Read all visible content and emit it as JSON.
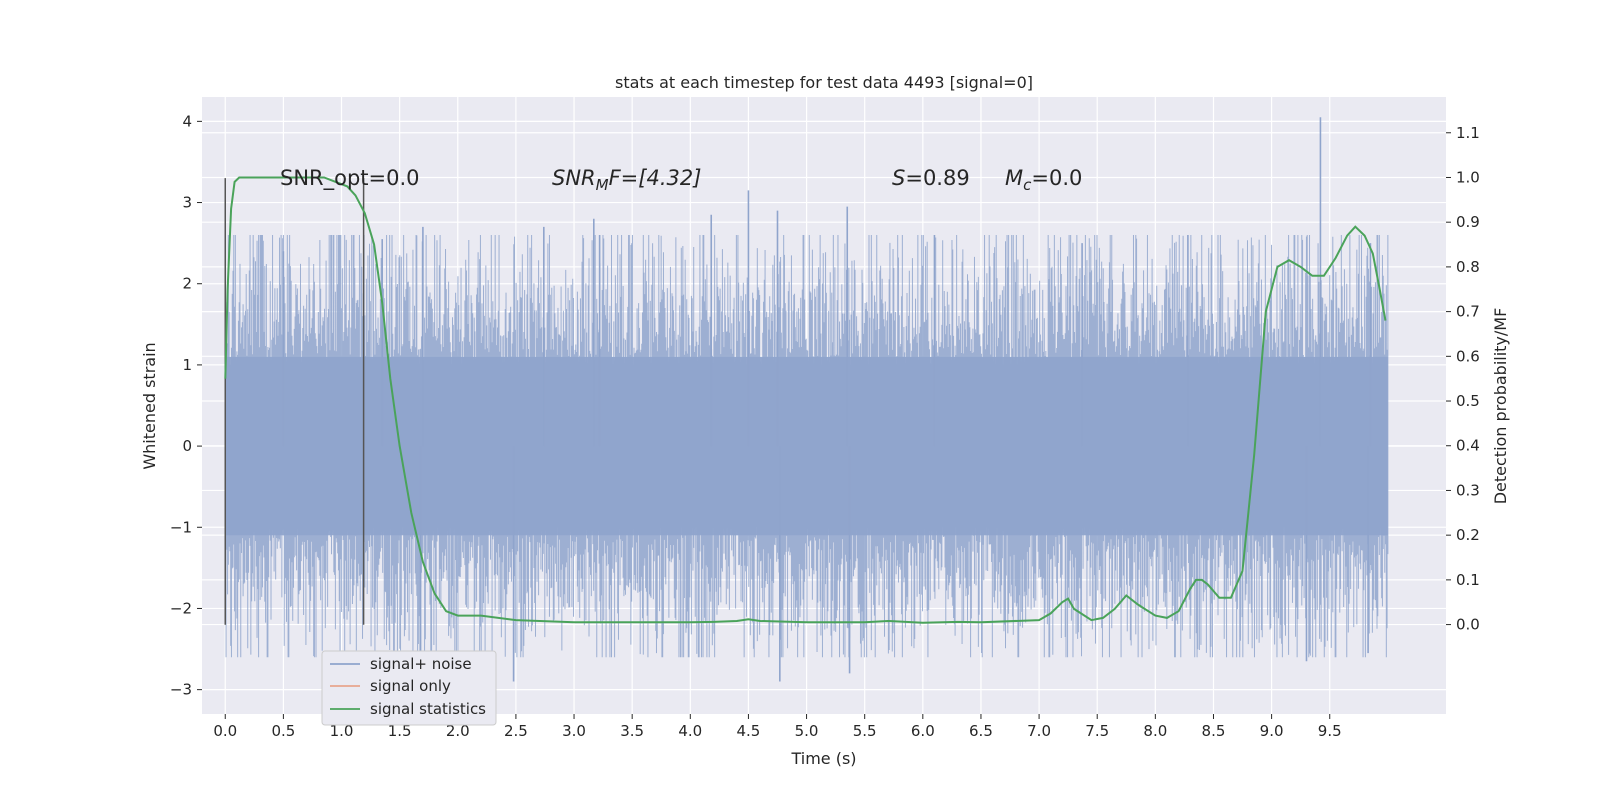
{
  "chart_data": {
    "type": "line",
    "title": "stats at each timestep for test data 4493 [signal=0]",
    "xlabel": "Time (s)",
    "ylabel_left": "Whitened strain",
    "ylabel_right": "Detection probability/MF",
    "xlim": [
      -0.2,
      10.5
    ],
    "ylim_left": [
      -3.3,
      4.3
    ],
    "ylim_right": [
      -0.2,
      1.18
    ],
    "x_ticks": [
      "0.0",
      "0.5",
      "1.0",
      "1.5",
      "2.0",
      "2.5",
      "3.0",
      "3.5",
      "4.0",
      "4.5",
      "5.0",
      "5.5",
      "6.0",
      "6.5",
      "7.0",
      "7.5",
      "8.0",
      "8.5",
      "9.0",
      "9.5"
    ],
    "y_left_ticks": [
      "4",
      "3",
      "2",
      "1",
      "0",
      "−1",
      "−2",
      "−3"
    ],
    "y_right_ticks": [
      "1.1",
      "1.0",
      "0.9",
      "0.8",
      "0.7",
      "0.6",
      "0.5",
      "0.4",
      "0.3",
      "0.2",
      "0.1",
      "0.0"
    ],
    "grid": true,
    "annotations": {
      "snr_opt": "SNR_opt=0.0",
      "snr_mf_prefix": "SNR",
      "snr_mf_sub": "M",
      "snr_mf_suffix": "F=[4.32]",
      "s_symbol": "S",
      "s_value": "=0.89",
      "mc_symbol": "M",
      "mc_sub": "c",
      "mc_value": "=0.0"
    },
    "vlines": [
      {
        "x": 0.0,
        "y": [
          -2.2,
          3.3
        ]
      },
      {
        "x": 1.19,
        "y": [
          -2.2,
          3.3
        ]
      }
    ],
    "noise": {
      "name": "signal+ noise",
      "x_range": [
        0.0,
        10.0
      ],
      "band": 1.1,
      "peaks": [
        {
          "x": 0.5,
          "y": 2.4
        },
        {
          "x": 1.35,
          "y": 2.55
        },
        {
          "x": 1.7,
          "y": 2.7
        },
        {
          "x": 1.68,
          "y": -2.7
        },
        {
          "x": 2.48,
          "y": -2.9
        },
        {
          "x": 2.74,
          "y": 2.7
        },
        {
          "x": 3.17,
          "y": 2.8
        },
        {
          "x": 3.22,
          "y": 2.6
        },
        {
          "x": 4.18,
          "y": 2.85
        },
        {
          "x": 4.5,
          "y": 3.15
        },
        {
          "x": 4.75,
          "y": 2.9
        },
        {
          "x": 4.77,
          "y": -2.9
        },
        {
          "x": 5.35,
          "y": 2.95
        },
        {
          "x": 5.37,
          "y": -2.8
        },
        {
          "x": 6.1,
          "y": 2.6
        },
        {
          "x": 7.37,
          "y": 2.5
        },
        {
          "x": 8.28,
          "y": 2.6
        },
        {
          "x": 9.42,
          "y": 4.05
        },
        {
          "x": 9.3,
          "y": -2.65
        },
        {
          "x": 9.85,
          "y": 2.5
        },
        {
          "x": 9.83,
          "y": -2.55
        }
      ]
    },
    "series": [
      {
        "name": "signal+ noise",
        "color": "#8fa4cc"
      },
      {
        "name": "signal only",
        "color": "#e8a58d"
      },
      {
        "name": "signal statistics",
        "color": "#4aa35a",
        "x": [
          0.0,
          0.02,
          0.05,
          0.08,
          0.12,
          0.2,
          0.3,
          0.5,
          0.7,
          0.85,
          0.95,
          1.05,
          1.12,
          1.2,
          1.28,
          1.35,
          1.42,
          1.5,
          1.6,
          1.7,
          1.8,
          1.9,
          2.0,
          2.2,
          2.5,
          3.0,
          3.5,
          4.0,
          4.2,
          4.4,
          4.5,
          4.6,
          5.0,
          5.5,
          5.7,
          6.0,
          6.3,
          6.5,
          7.0,
          7.1,
          7.2,
          7.25,
          7.3,
          7.45,
          7.55,
          7.65,
          7.75,
          7.85,
          8.0,
          8.1,
          8.2,
          8.3,
          8.35,
          8.4,
          8.45,
          8.55,
          8.65,
          8.75,
          8.85,
          8.95,
          9.05,
          9.15,
          9.25,
          9.35,
          9.45,
          9.55,
          9.65,
          9.72,
          9.8,
          9.87,
          9.93,
          9.98
        ],
        "y": [
          0.55,
          0.75,
          0.93,
          0.99,
          1.0,
          1.0,
          1.0,
          1.0,
          1.0,
          1.0,
          0.99,
          0.98,
          0.96,
          0.92,
          0.85,
          0.72,
          0.55,
          0.4,
          0.25,
          0.14,
          0.07,
          0.03,
          0.02,
          0.02,
          0.01,
          0.005,
          0.005,
          0.005,
          0.006,
          0.008,
          0.012,
          0.008,
          0.005,
          0.005,
          0.008,
          0.004,
          0.006,
          0.005,
          0.01,
          0.025,
          0.05,
          0.058,
          0.035,
          0.01,
          0.015,
          0.035,
          0.065,
          0.045,
          0.02,
          0.015,
          0.03,
          0.08,
          0.1,
          0.1,
          0.09,
          0.06,
          0.06,
          0.12,
          0.38,
          0.7,
          0.8,
          0.815,
          0.8,
          0.78,
          0.78,
          0.82,
          0.87,
          0.89,
          0.87,
          0.83,
          0.75,
          0.68
        ]
      }
    ],
    "legend": {
      "position": "lower-left",
      "entries": [
        "signal+ noise",
        "signal only",
        "signal statistics"
      ]
    }
  }
}
